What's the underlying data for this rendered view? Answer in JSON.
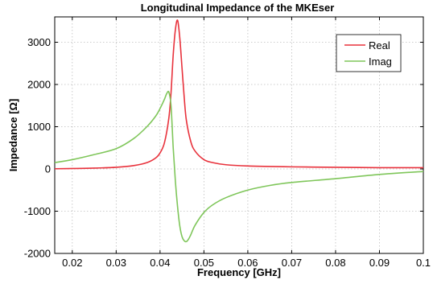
{
  "chart_data": {
    "type": "line",
    "title": "Longitudinal Impedance of the MKEser",
    "xlabel": "Frequency [GHz]",
    "ylabel": "Impedance [Ω]",
    "xlim": [
      0.016,
      0.1
    ],
    "ylim": [
      -2000,
      3600
    ],
    "x_ticks": [
      0.02,
      0.03,
      0.04,
      0.05,
      0.06,
      0.07,
      0.08,
      0.09,
      0.1
    ],
    "x_tick_labels": [
      "0.02",
      "0.03",
      "0.04",
      "0.05",
      "0.06",
      "0.07",
      "0.08",
      "0.09",
      "0.1"
    ],
    "y_ticks": [
      -2000,
      -1000,
      0,
      1000,
      2000,
      3000
    ],
    "y_tick_labels": [
      "-2000",
      "-1000",
      "0",
      "1000",
      "2000",
      "3000"
    ],
    "grid": true,
    "legend_position": "top-right",
    "series": [
      {
        "name": "Real",
        "color": "#e8323c",
        "x": [
          0.016,
          0.02,
          0.025,
          0.03,
          0.034,
          0.037,
          0.039,
          0.04,
          0.041,
          0.042,
          0.0425,
          0.043,
          0.0435,
          0.044,
          0.0445,
          0.045,
          0.0455,
          0.046,
          0.047,
          0.048,
          0.05,
          0.052,
          0.055,
          0.06,
          0.07,
          0.08,
          0.09,
          0.1
        ],
        "values": [
          5,
          10,
          20,
          40,
          80,
          150,
          260,
          380,
          620,
          1200,
          1800,
          2700,
          3300,
          3520,
          3100,
          2400,
          1700,
          1150,
          650,
          420,
          220,
          150,
          100,
          70,
          50,
          40,
          30,
          30
        ]
      },
      {
        "name": "Imag",
        "color": "#7fc65a",
        "x": [
          0.016,
          0.02,
          0.025,
          0.03,
          0.034,
          0.037,
          0.039,
          0.04,
          0.041,
          0.0415,
          0.042,
          0.0425,
          0.043,
          0.0435,
          0.044,
          0.0445,
          0.045,
          0.0455,
          0.046,
          0.0465,
          0.047,
          0.048,
          0.05,
          0.052,
          0.055,
          0.06,
          0.065,
          0.07,
          0.08,
          0.09,
          0.1
        ],
        "values": [
          150,
          220,
          340,
          480,
          720,
          1000,
          1250,
          1430,
          1650,
          1780,
          1820,
          1500,
          500,
          -300,
          -900,
          -1350,
          -1600,
          -1700,
          -1720,
          -1660,
          -1560,
          -1330,
          -1030,
          -850,
          -680,
          -500,
          -390,
          -320,
          -230,
          -130,
          -60
        ]
      }
    ]
  }
}
